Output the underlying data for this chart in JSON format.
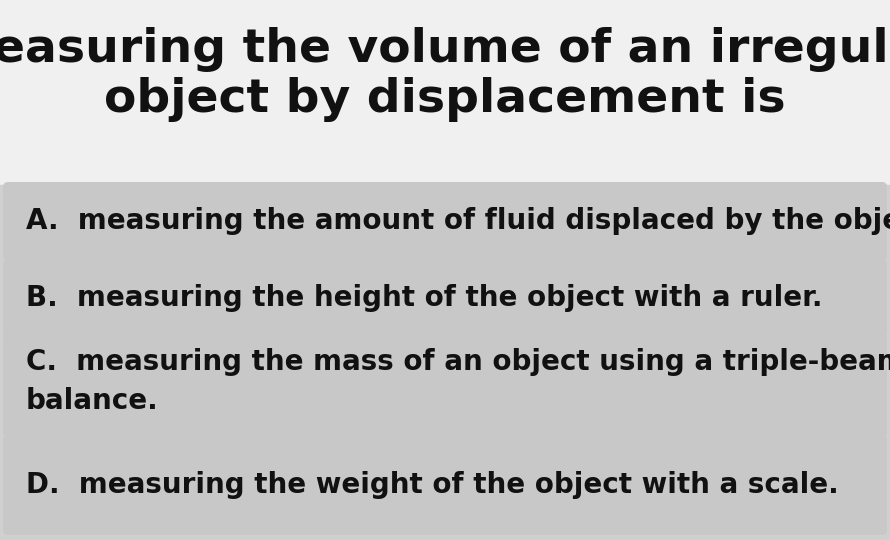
{
  "title_line1": "Measuring the volume of an irregular",
  "title_line2": "object by displacement is",
  "title_fontsize": 34,
  "title_color": "#111111",
  "title_bg_color": "#f0f0f0",
  "options_bg_color": "#d0d0d0",
  "option_box_color": "#c8c8c8",
  "option_text_color": "#111111",
  "option_fontsize": 20,
  "options": [
    {
      "label": "A.",
      "text": "measuring the amount of fluid displaced by the object."
    },
    {
      "label": "B.",
      "text": "measuring the height of the object with a ruler."
    },
    {
      "label": "C.",
      "text": "measuring the mass of an object using a triple-beam\nbalance."
    },
    {
      "label": "D.",
      "text": "measuring the weight of the object with a scale."
    }
  ]
}
